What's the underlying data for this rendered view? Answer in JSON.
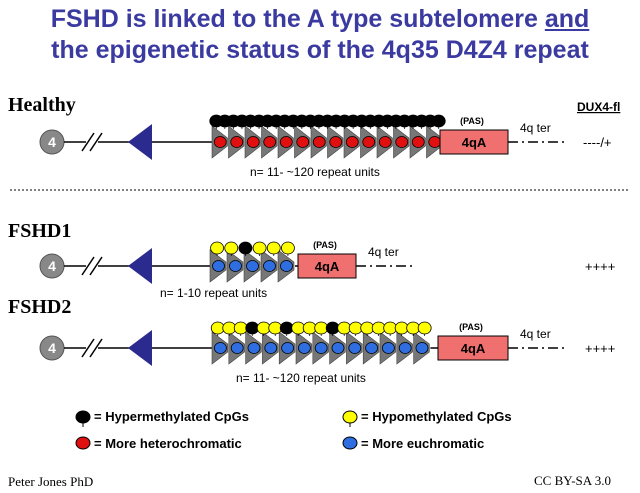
{
  "title": {
    "line1_main": "FSHD is linked to the A type subtelomere",
    "line1_underlined": "and",
    "line2": "the epigenetic status of the 4q35 D4Z4 repeat"
  },
  "chromosome_label": "4",
  "pas_label": "(PAS)",
  "allele_label": "4qA",
  "ter_label": "4q ter",
  "dux4_header": "DUX4-fl",
  "rows": {
    "healthy": {
      "label": "Healthy",
      "repeat_text": "n= 11- ~120 repeat units",
      "dux4": "----/+"
    },
    "fshd1": {
      "label": "FSHD1",
      "repeat_text": "n= 1-10 repeat units",
      "dux4": "++++"
    },
    "fshd2": {
      "label": "FSHD2",
      "repeat_text": "n= 11- ~120 repeat units",
      "dux4": "++++"
    }
  },
  "legend": {
    "hyper": "= Hypermethylated CpGs",
    "hypo": "= Hypomethylated CpGs",
    "hetero": "= More heterochromatic",
    "eu": "= More euchromatic"
  },
  "colors": {
    "title": "#3a3aa0",
    "hypermethylated": "#000000",
    "hypomethylated": "#ffff00",
    "heterochromatic": "#e01010",
    "euchromatic": "#2e6ee0",
    "allele_box": "#f07070",
    "centromere": "#2b2b8f",
    "chromosome_circle": "#888888"
  },
  "credits": {
    "author": "Peter Jones PhD",
    "license": "CC BY-SA 3.0"
  }
}
